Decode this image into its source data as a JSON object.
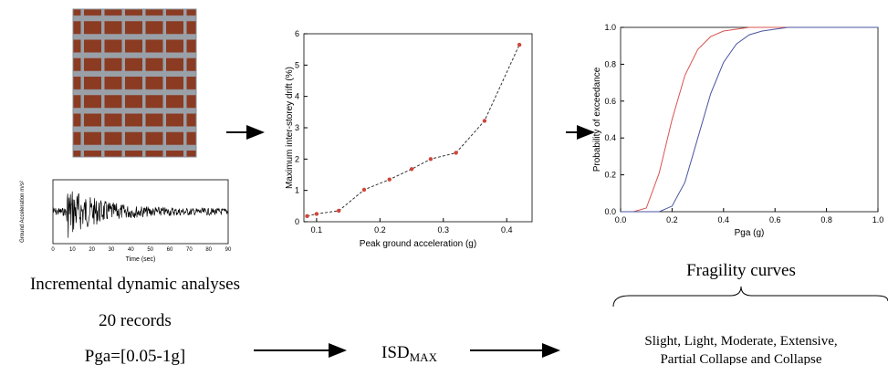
{
  "chart_data": [
    {
      "type": "line",
      "x_label": "Peak ground acceleration (g)",
      "y_label": "Maximum inter-storey drift (%)",
      "x": [
        0.085,
        0.1,
        0.135,
        0.175,
        0.215,
        0.25,
        0.28,
        0.32,
        0.365,
        0.42
      ],
      "values": [
        0.18,
        0.25,
        0.35,
        1.02,
        1.35,
        1.68,
        2.0,
        2.2,
        3.22,
        5.65
      ],
      "color": "#333333",
      "marker_color": "#d0463a",
      "line_style": "dashed",
      "xlim": [
        0.08,
        0.44
      ],
      "xticks": [
        0.1,
        0.2,
        0.3,
        0.4
      ],
      "ylim": [
        0,
        6
      ],
      "yticks": [
        0,
        1,
        2,
        3,
        4,
        5,
        6
      ]
    },
    {
      "type": "line",
      "x_label": "Pga (g)",
      "y_label": "Probability of exceedance",
      "x": [
        0,
        0.05,
        0.1,
        0.15,
        0.2,
        0.25,
        0.3,
        0.35,
        0.4,
        0.45,
        0.5,
        0.55,
        0.6,
        0.65,
        0.7,
        0.8,
        0.9,
        1.0
      ],
      "series": [
        {
          "color": "#d9534f",
          "values": [
            0,
            0,
            0.02,
            0.21,
            0.5,
            0.74,
            0.88,
            0.95,
            0.98,
            0.99,
            1.0,
            1.0,
            1.0,
            1.0,
            1.0,
            1.0,
            1.0,
            1.0
          ]
        },
        {
          "color": "#4a55a2",
          "values": [
            0,
            0,
            0,
            0,
            0.03,
            0.16,
            0.4,
            0.64,
            0.81,
            0.91,
            0.96,
            0.98,
            0.99,
            1.0,
            1.0,
            1.0,
            1.0,
            1.0
          ]
        }
      ],
      "xlim": [
        0,
        1
      ],
      "xticks": [
        {
          "value": 0,
          "label": "0.0"
        },
        0.2,
        0.4,
        0.6,
        0.8,
        {
          "value": 1,
          "label": "1.0"
        }
      ],
      "ylim": [
        0,
        1
      ],
      "yticks": [
        {
          "value": 0,
          "label": "0.0"
        },
        0.2,
        0.4,
        0.6,
        0.8,
        {
          "value": 1,
          "label": "1.0"
        }
      ]
    }
  ],
  "record": {
    "x_label": "Time (sec)",
    "y_label": "Ground Acceleration m/s²",
    "xticks": [
      0,
      10,
      20,
      30,
      40,
      50,
      60,
      70,
      80,
      90
    ],
    "xlim": [
      0,
      90
    ]
  },
  "captions": {
    "ida": "Incremental dynamic analyses",
    "records": "20 records",
    "pga": "Pga=[0.05-1g]",
    "isd": "ISD",
    "isd_sub": "MAX",
    "fragility": "Fragility curves",
    "states_1": "Slight,  Light, Moderate, Extensive,",
    "states_2": "Partial Collapse and Collapse"
  }
}
